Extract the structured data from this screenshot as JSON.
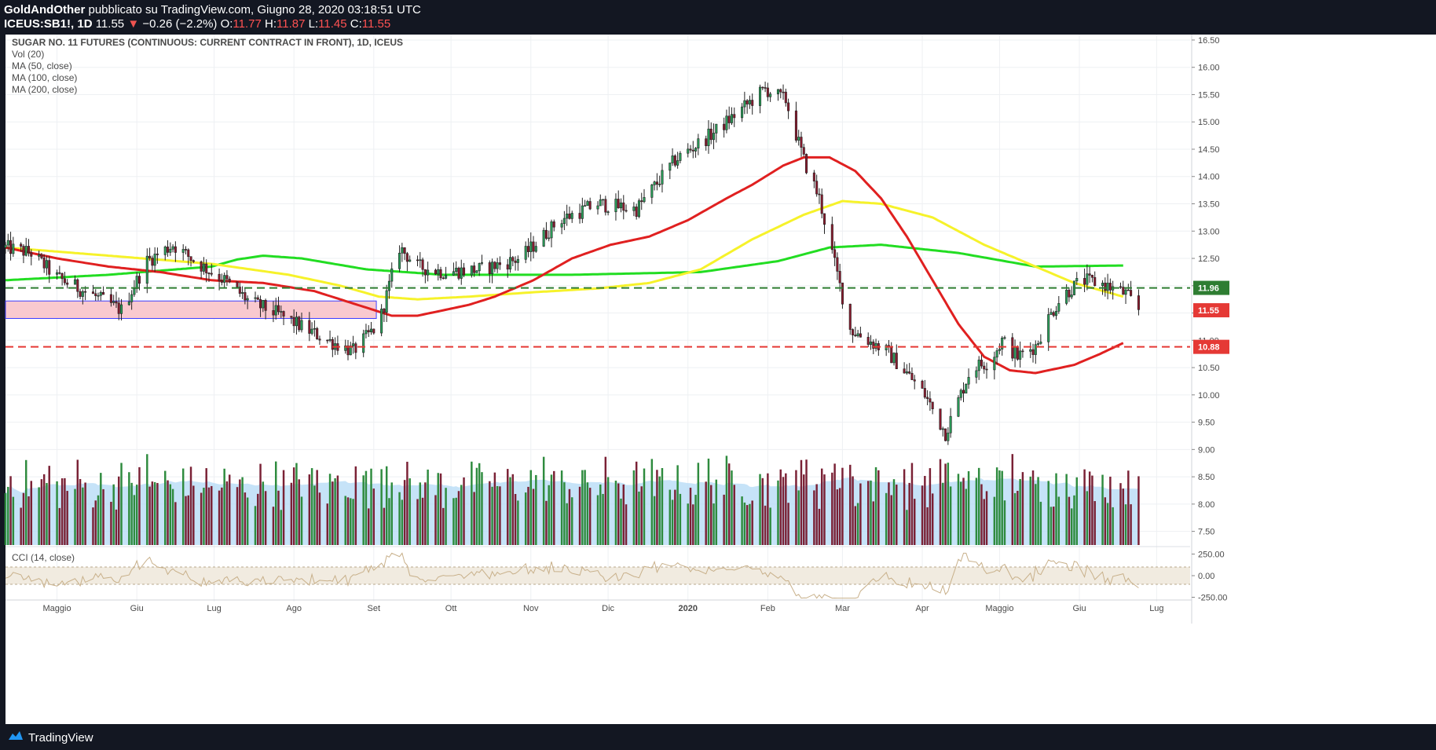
{
  "header": {
    "author": "GoldAndOther",
    "published": "pubblicato su TradingView.com, Giugno 28, 2020 03:18:51 UTC",
    "symbol": "ICEUS:SB1!, 1D",
    "last": "11.55",
    "change_icon": "triangle-down-icon",
    "change": "−0.26 (−2.2%)",
    "o_label": "O:",
    "o_val": "11.77",
    "h_label": "H:",
    "h_val": "11.87",
    "l_label": "L:",
    "l_val": "11.45",
    "c_label": "C:",
    "c_val": "11.55"
  },
  "legend": {
    "title": "SUGAR NO. 11 FUTURES (CONTINUOUS: CURRENT CONTRACT IN FRONT), 1D, ICEUS",
    "vol": "Vol (20)",
    "ma50": "MA (50, close)",
    "ma100": "MA (100, close)",
    "ma200": "MA (200, close)",
    "cci": "CCI (14, close)"
  },
  "footer": {
    "brand": "TradingView",
    "logo_icon": "tradingview-logo-icon"
  },
  "colors": {
    "bg": "#ffffff",
    "frame": "#131722",
    "up": "#26a65b",
    "down": "#7b1e32",
    "ma50": "#e02020",
    "ma100": "#f6f22a",
    "ma200": "#22dd22",
    "level_green": "#2e7d32",
    "level_red": "#e53935",
    "zone_fill": "#f9c9cf",
    "zone_border": "#3f3fff",
    "vol_ma": "#b3d9f5",
    "vol_up": "#2e8b3e",
    "vol_down": "#7a2135",
    "cci": "#c8b08a",
    "cci_band": "#f1ebe0"
  },
  "chart_data": {
    "type": "candlestick",
    "price_axis": {
      "ylim": [
        7.25,
        16.6
      ],
      "ticks": [
        "16.50",
        "16.00",
        "15.50",
        "15.00",
        "14.50",
        "14.00",
        "13.50",
        "13.00",
        "12.50",
        "12.00",
        "11.50",
        "11.00",
        "10.50",
        "10.00",
        "9.50",
        "9.00",
        "8.50",
        "8.00",
        "7.50"
      ]
    },
    "cci_axis": {
      "ylim": [
        -300,
        300
      ],
      "ticks": [
        "250.00",
        "0.00",
        "-250.00"
      ],
      "band": [
        -100,
        100
      ]
    },
    "x_labels": [
      "Maggio",
      "Giu",
      "Lug",
      "Ago",
      "Set",
      "Ott",
      "Nov",
      "Dic",
      "2020",
      "Feb",
      "Mar",
      "Apr",
      "Maggio",
      "Giu",
      "Lug"
    ],
    "x_label_days": [
      0,
      31,
      61,
      92,
      123,
      153,
      184,
      214,
      245,
      276,
      305,
      336,
      366,
      397,
      427
    ],
    "x_range_days": [
      -20,
      440
    ],
    "price_path_days": [
      -20,
      -10,
      0,
      15,
      25,
      35,
      45,
      55,
      65,
      75,
      85,
      95,
      105,
      115,
      125,
      133,
      140,
      150,
      165,
      180,
      195,
      210,
      225,
      240,
      255,
      265,
      275,
      283,
      290,
      296,
      302,
      308,
      315,
      322,
      330,
      337,
      345,
      355,
      362,
      367,
      373,
      380,
      385,
      390,
      398,
      405,
      410,
      415,
      420
    ],
    "price_path_values": [
      12.7,
      12.6,
      12.15,
      11.8,
      11.55,
      12.45,
      12.75,
      12.4,
      12.1,
      11.7,
      11.5,
      11.25,
      11.0,
      10.8,
      11.3,
      12.7,
      12.35,
      12.25,
      12.3,
      12.5,
      13.2,
      13.5,
      13.4,
      14.3,
      14.8,
      15.2,
      15.6,
      15.4,
      14.3,
      13.6,
      12.4,
      11.2,
      11.0,
      10.8,
      10.4,
      10.0,
      9.3,
      10.5,
      10.6,
      11.0,
      10.7,
      10.9,
      11.4,
      11.8,
      12.1,
      12.05,
      11.95,
      11.85,
      11.55
    ],
    "ma50": {
      "days": [
        -20,
        0,
        20,
        40,
        60,
        80,
        100,
        120,
        130,
        140,
        150,
        160,
        170,
        185,
        200,
        215,
        230,
        245,
        260,
        270,
        282,
        290,
        300,
        310,
        320,
        330,
        340,
        350,
        360,
        370,
        380,
        385,
        395,
        405,
        414
      ],
      "values": [
        12.7,
        12.5,
        12.35,
        12.25,
        12.1,
        12.05,
        11.9,
        11.6,
        11.45,
        11.45,
        11.55,
        11.65,
        11.8,
        12.1,
        12.5,
        12.75,
        12.9,
        13.2,
        13.6,
        13.85,
        14.2,
        14.35,
        14.35,
        14.1,
        13.6,
        12.9,
        12.1,
        11.3,
        10.7,
        10.45,
        10.4,
        10.45,
        10.55,
        10.75,
        10.95
      ]
    },
    "ma100": {
      "days": [
        -20,
        20,
        60,
        90,
        110,
        125,
        140,
        160,
        185,
        210,
        230,
        250,
        270,
        290,
        305,
        320,
        340,
        360,
        380,
        395,
        414
      ],
      "values": [
        12.7,
        12.55,
        12.4,
        12.2,
        12.0,
        11.8,
        11.75,
        11.8,
        11.88,
        11.95,
        12.05,
        12.3,
        12.85,
        13.3,
        13.55,
        13.5,
        13.25,
        12.75,
        12.35,
        12.05,
        11.8
      ]
    },
    "ma200": {
      "days": [
        -20,
        20,
        60,
        70,
        80,
        95,
        120,
        150,
        200,
        250,
        280,
        300,
        320,
        350,
        380,
        414
      ],
      "values": [
        12.1,
        12.2,
        12.35,
        12.48,
        12.55,
        12.5,
        12.3,
        12.2,
        12.2,
        12.25,
        12.45,
        12.7,
        12.75,
        12.6,
        12.35,
        12.37
      ]
    },
    "levels": [
      {
        "price": 11.96,
        "label": "11.96",
        "style": "dashed-green"
      },
      {
        "price": 10.88,
        "label": "10.88",
        "style": "dashed-red"
      }
    ],
    "last_price_label": {
      "price": 11.55,
      "label": "11.55"
    },
    "zone": {
      "from_day": -20,
      "to_day": 124,
      "low": 11.4,
      "high": 11.72
    },
    "volume": {
      "display_range": [
        0,
        2.3
      ]
    }
  }
}
